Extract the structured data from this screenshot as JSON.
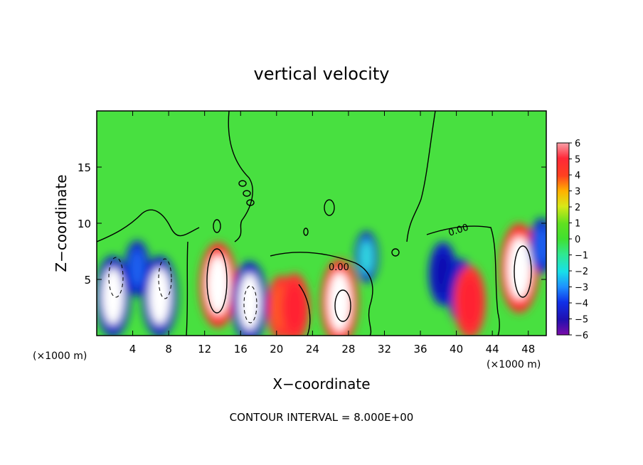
{
  "chart_data": {
    "type": "heatmap",
    "title": "vertical velocity",
    "xlabel": "X−coordinate",
    "ylabel": "Z−coordinate",
    "x_unit_label": "(×1000 m)",
    "footer": "CONTOUR INTERVAL = 8.000E+00",
    "contour_label": "0.00",
    "xlim": [
      0,
      50
    ],
    "ylim": [
      0,
      20
    ],
    "x_ticks": [
      "4",
      "8",
      "12",
      "16",
      "20",
      "24",
      "28",
      "32",
      "36",
      "40",
      "44",
      "48"
    ],
    "y_ticks": [
      "5",
      "10",
      "15"
    ],
    "colorbar": {
      "min": -6,
      "max": 6,
      "labels": [
        "6",
        "5",
        "4",
        "3",
        "2",
        "1",
        "0",
        "−1",
        "−2",
        "−3",
        "−4",
        "−5",
        "−6"
      ]
    },
    "grid": false,
    "features": [
      {
        "x": 1.8,
        "z": 3.5,
        "w": -9
      },
      {
        "x": 7.0,
        "z": 3.5,
        "w": -9
      },
      {
        "x": 4.5,
        "z": 6.0,
        "w": -3
      },
      {
        "x": 13.5,
        "z": 4.5,
        "w": 10
      },
      {
        "x": 17.0,
        "z": 3.0,
        "w": -9
      },
      {
        "x": 20.5,
        "z": 2.5,
        "w": 5
      },
      {
        "x": 22.0,
        "z": 2.5,
        "w": 6
      },
      {
        "x": 27.0,
        "z": 3.0,
        "w": 10
      },
      {
        "x": 30.0,
        "z": 7.0,
        "w": -2
      },
      {
        "x": 38.5,
        "z": 5.5,
        "w": -5
      },
      {
        "x": 40.5,
        "z": 4.0,
        "w": -5
      },
      {
        "x": 41.5,
        "z": 3.0,
        "w": 7
      },
      {
        "x": 47.0,
        "z": 6.0,
        "w": 11
      },
      {
        "x": 49.5,
        "z": 8.0,
        "w": -3
      }
    ]
  }
}
